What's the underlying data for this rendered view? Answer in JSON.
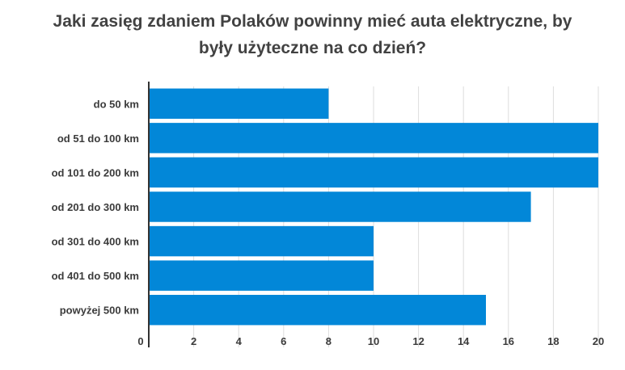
{
  "chart_data": {
    "type": "bar",
    "orientation": "horizontal",
    "title_lines": [
      "Jaki zasięg zdaniem Polaków powinny mieć auta elektryczne, by",
      "były użyteczne na co dzień?"
    ],
    "categories": [
      "do 50 km",
      "od 51 do 100 km",
      "od 101 do 200 km",
      "od 201 do 300 km",
      "od 301 do 400 km",
      "od 401 do 500 km",
      "powyżej 500 km"
    ],
    "values": [
      8,
      20,
      20,
      17,
      10,
      10,
      15
    ],
    "xlim": [
      0,
      20
    ],
    "xticks": [
      0,
      2,
      4,
      6,
      8,
      10,
      12,
      14,
      16,
      18,
      20
    ],
    "grid": true,
    "legend": "none",
    "colors": {
      "bar": "#0287d8",
      "grid": "#dddddd",
      "axis": "#333333",
      "text": "#3b3b3b"
    }
  }
}
